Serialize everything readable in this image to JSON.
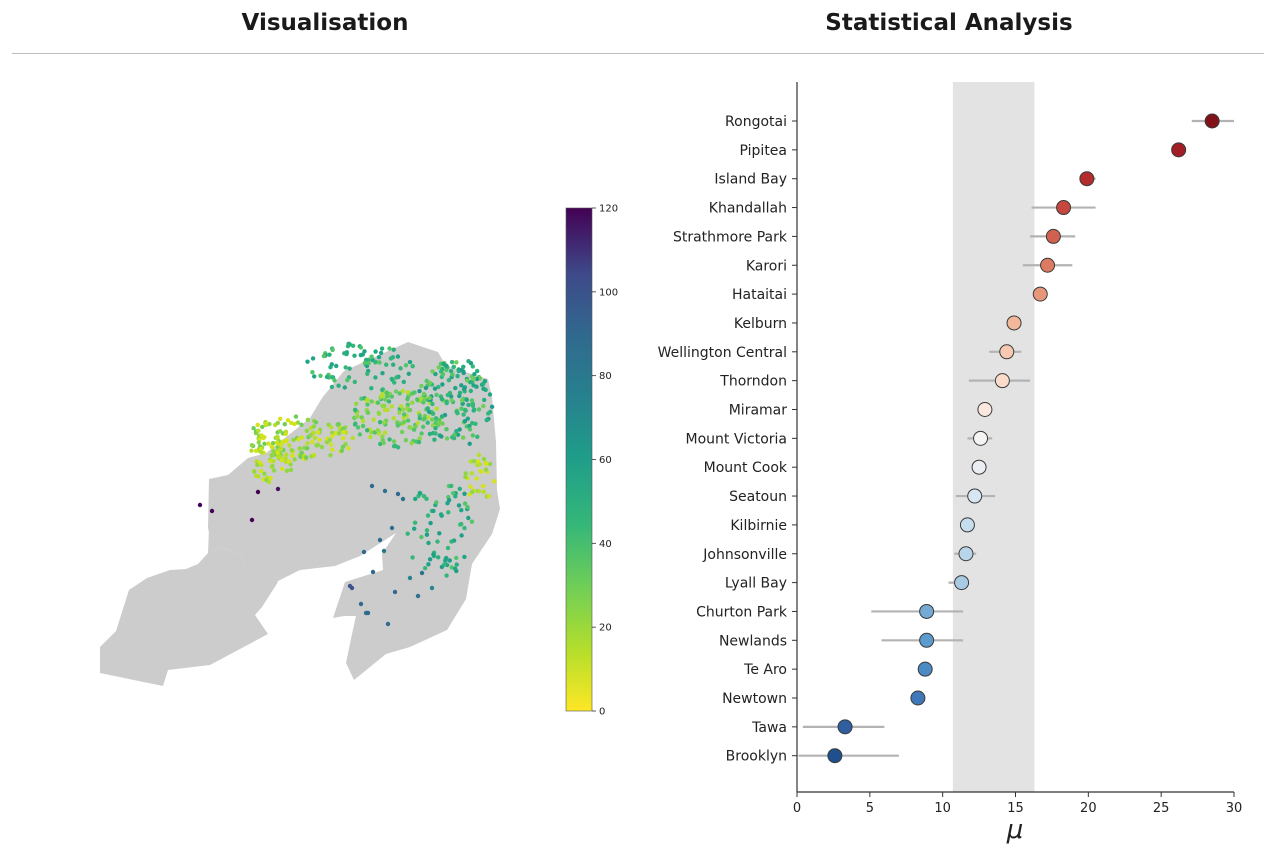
{
  "headers": {
    "left": "Visualisation",
    "right": "Statistical Analysis"
  },
  "map": {
    "land_color": "#cccccc",
    "colorbar": {
      "colormap": "viridis_r",
      "min": 0,
      "max": 120,
      "ticks": [
        "0",
        "20",
        "40",
        "60",
        "80",
        "100",
        "120"
      ]
    }
  },
  "chart_data": {
    "type": "scatter",
    "title": "",
    "xlabel": "μ",
    "ylabel": "",
    "xlim": [
      0,
      30
    ],
    "xticks": [
      "0",
      "5",
      "10",
      "15",
      "20",
      "25",
      "30"
    ],
    "shaded_band": [
      10.7,
      16.3
    ],
    "band_color": "#e3e3e3",
    "categories": [
      "Rongotai",
      "Pipitea",
      "Island Bay",
      "Khandallah",
      "Strathmore Park",
      "Karori",
      "Hataitai",
      "Kelburn",
      "Wellington Central",
      "Thorndon",
      "Miramar",
      "Mount Victoria",
      "Mount Cook",
      "Seatoun",
      "Kilbirnie",
      "Johnsonville",
      "Lyall Bay",
      "Churton Park",
      "Newlands",
      "Te Aro",
      "Newtown",
      "Tawa",
      "Brooklyn"
    ],
    "values": [
      28.5,
      26.2,
      19.9,
      18.3,
      17.6,
      17.2,
      16.7,
      14.9,
      14.4,
      14.1,
      12.9,
      12.6,
      12.5,
      12.2,
      11.7,
      11.6,
      11.3,
      8.9,
      8.9,
      8.8,
      8.3,
      3.3,
      2.6
    ],
    "ci_low": [
      27.1,
      25.9,
      19.4,
      16.1,
      16.0,
      15.5,
      16.7,
      14.5,
      13.2,
      11.8,
      12.9,
      11.7,
      12.5,
      10.9,
      11.7,
      10.8,
      10.4,
      5.1,
      5.8,
      8.8,
      8.3,
      0.4,
      0.1
    ],
    "ci_high": [
      30.0,
      26.6,
      20.5,
      20.5,
      19.1,
      18.9,
      16.7,
      15.3,
      15.4,
      16.0,
      12.9,
      13.4,
      12.5,
      13.6,
      11.7,
      12.3,
      11.8,
      11.4,
      11.4,
      8.8,
      8.3,
      6.0,
      7.0
    ],
    "colors": [
      "#811219",
      "#a11e25",
      "#b52c2f",
      "#c5473d",
      "#d06150",
      "#dc7b61",
      "#e6977a",
      "#f3b89a",
      "#f7c9b0",
      "#fbdcca",
      "#fbe7dd",
      "#f6f3f3",
      "#ebeef3",
      "#d7e7f1",
      "#c6dded",
      "#b9d5e9",
      "#a8cbe3",
      "#73a9d2",
      "#5b9bce",
      "#4b8ac3",
      "#3e78b8",
      "#2f5ea1",
      "#1f4f8d"
    ]
  }
}
